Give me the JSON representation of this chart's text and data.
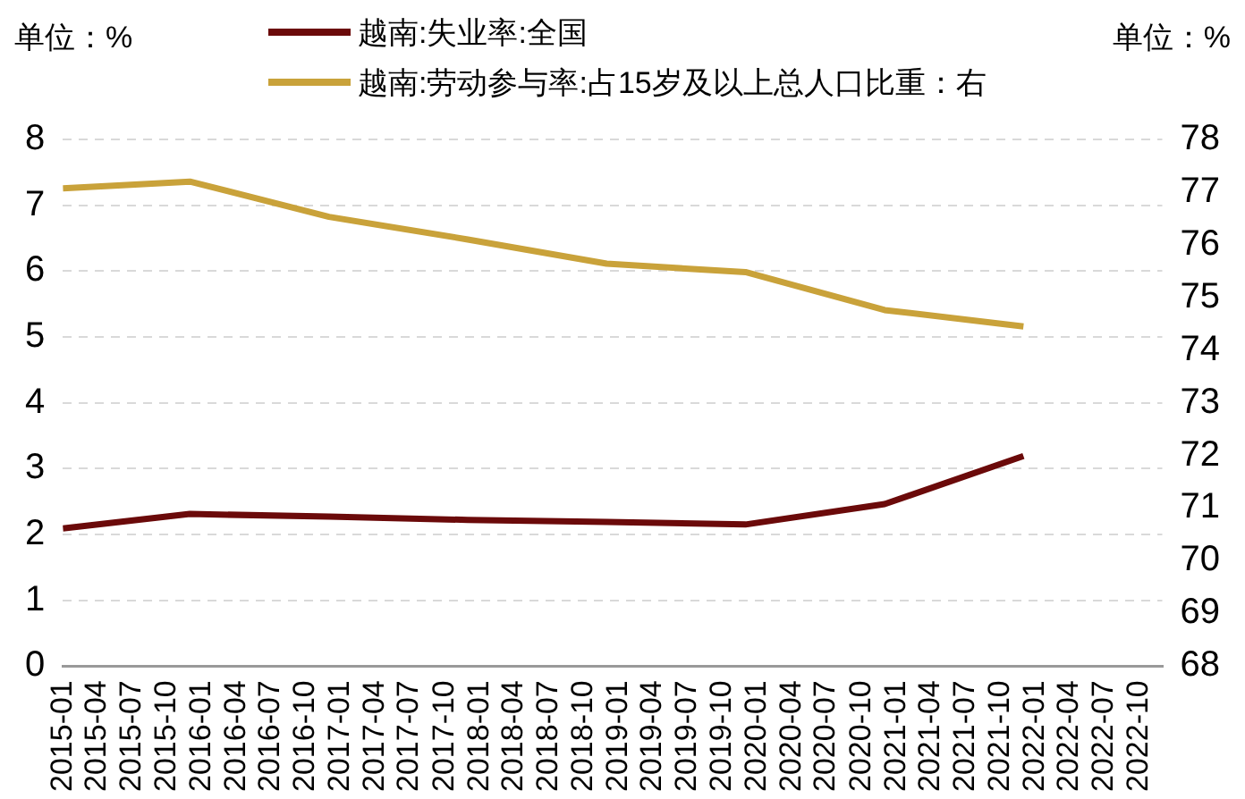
{
  "chart_data": {
    "type": "line",
    "ylabel": "单位：%",
    "y2label": "单位：%",
    "x": [
      "2015-01",
      "2015-12",
      "2016-12",
      "2017-12",
      "2018-12",
      "2019-12",
      "2020-12",
      "2021-12"
    ],
    "series": [
      {
        "name": "越南:失业率:全国",
        "color": "#6b0a0a",
        "values": [
          2.09,
          2.31,
          2.27,
          2.22,
          2.19,
          2.15,
          2.46,
          3.19
        ]
      },
      {
        "name": "越南:劳动参与率:占15岁及以上总人口比重：右",
        "color": "#c9a23a",
        "axis": "y2",
        "values": [
          77.07,
          77.2,
          76.53,
          76.1,
          75.64,
          75.48,
          74.76,
          74.45
        ]
      }
    ],
    "xlim": [
      "2015-01",
      "2022-12"
    ],
    "xticks": [
      "2015-01",
      "2015-04",
      "2015-07",
      "2015-10",
      "2016-01",
      "2016-04",
      "2016-07",
      "2016-10",
      "2017-01",
      "2017-04",
      "2017-07",
      "2017-10",
      "2018-01",
      "2018-04",
      "2018-07",
      "2018-10",
      "2019-01",
      "2019-04",
      "2019-07",
      "2019-10",
      "2020-01",
      "2020-04",
      "2020-07",
      "2020-10",
      "2021-01",
      "2021-04",
      "2021-07",
      "2021-10",
      "2022-01",
      "2022-04",
      "2022-07",
      "2022-10"
    ],
    "ylim": [
      0,
      8
    ],
    "yticks": [
      0,
      1,
      2,
      3,
      4,
      5,
      6,
      7,
      8
    ],
    "y2lim": [
      68,
      78
    ],
    "y2ticks": [
      68,
      69,
      70,
      71,
      72,
      73,
      74,
      75,
      76,
      77,
      78
    ],
    "grid": "y",
    "legend": "top",
    "marker": "none",
    "line_style": "solid"
  }
}
